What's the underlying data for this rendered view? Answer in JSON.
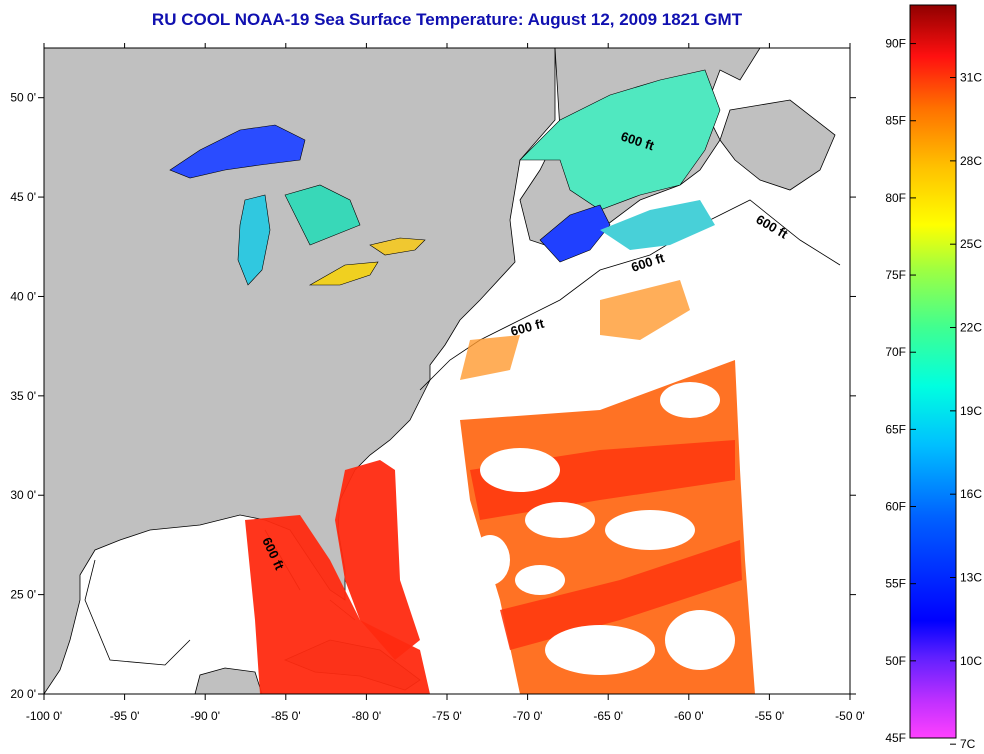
{
  "title": "RU COOL  NOAA-19  Sea Surface Temperature:  August 12, 2009 1821 GMT",
  "map": {
    "lon_range": [
      -100,
      -50
    ],
    "lat_range": [
      20,
      52.5
    ],
    "x_ticks": [
      "-100 0'",
      "-95 0'",
      "-90 0'",
      "-85 0'",
      "-80 0'",
      "-75 0'",
      "-70 0'",
      "-65 0'",
      "-60 0'",
      "-55 0'",
      "-50 0'"
    ],
    "y_ticks": [
      "20 0'",
      "25 0'",
      "30 0'",
      "35 0'",
      "40 0'",
      "45 0'",
      "50 0'"
    ],
    "contour_label": "600 ft",
    "colors": {
      "land": "#c0c0c0",
      "no_data": "#ffffff",
      "gulf_stream": "#ff3a10",
      "warm": "#ff6a18",
      "lake_cold": "#2040ff",
      "lake_mid": "#40e0c0",
      "lake_warm": "#ffd020"
    }
  },
  "colorbar": {
    "fahrenheit_labels": [
      "90F",
      "85F",
      "80F",
      "75F",
      "70F",
      "65F",
      "60F",
      "55F",
      "50F",
      "45F"
    ],
    "celsius_labels": [
      "31C",
      "28C",
      "25C",
      "22C",
      "19C",
      "16C",
      "13C",
      "10C",
      "7C"
    ]
  }
}
